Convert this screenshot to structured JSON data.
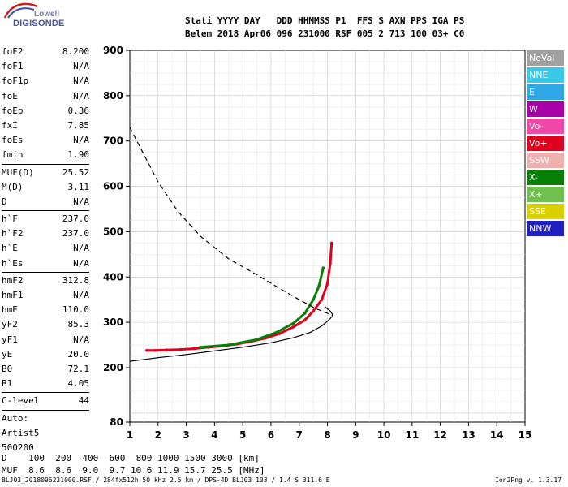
{
  "logo": {
    "line1": "Lowell",
    "line2": "DIGISONDE"
  },
  "header": {
    "line1": "Stati YYYY DAY   DDD HHMMSS P1  FFS S AXN PPS IGA PS",
    "line2": "Belem 2018 Apr06 096 231000 RSF 005 2 713 100 03+ C0"
  },
  "params": [
    {
      "key": "foF2",
      "value": "8.200"
    },
    {
      "key": "foF1",
      "value": "N/A"
    },
    {
      "key": "foF1p",
      "value": "N/A"
    },
    {
      "key": "foE",
      "value": "N/A"
    },
    {
      "key": "foEp",
      "value": "0.36"
    },
    {
      "key": "fxI",
      "value": "7.85"
    },
    {
      "key": "foEs",
      "value": "N/A"
    },
    {
      "key": "fmin",
      "value": "1.90"
    },
    {
      "key": "MUF(D)",
      "value": "25.52",
      "sep": true
    },
    {
      "key": "M(D)",
      "value": "3.11"
    },
    {
      "key": "D",
      "value": "N/A"
    },
    {
      "key": "h`F",
      "value": "237.0",
      "sep": true
    },
    {
      "key": "h`F2",
      "value": "237.0"
    },
    {
      "key": "h`E",
      "value": "N/A"
    },
    {
      "key": "h`Es",
      "value": "N/A"
    },
    {
      "key": "hmF2",
      "value": "312.8",
      "sep": true
    },
    {
      "key": "hmF1",
      "value": "N/A"
    },
    {
      "key": "hmE",
      "value": "110.0"
    },
    {
      "key": "yF2",
      "value": "85.3"
    },
    {
      "key": "yF1",
      "value": "N/A"
    },
    {
      "key": "yE",
      "value": "20.0"
    },
    {
      "key": "B0",
      "value": "72.1"
    },
    {
      "key": "B1",
      "value": "4.05"
    },
    {
      "key": "C-level",
      "value": "44",
      "sep": true
    }
  ],
  "auto_lines": [
    "Auto:",
    "Artist5",
    "500200"
  ],
  "legend": [
    {
      "label": "NoVal",
      "color": "#a0a0a0"
    },
    {
      "label": "NNE",
      "color": "#38c8e8"
    },
    {
      "label": "E",
      "color": "#30a8e8"
    },
    {
      "label": "W",
      "color": "#a800a8"
    },
    {
      "label": "Vo-",
      "color": "#f048a8"
    },
    {
      "label": "Vo+",
      "color": "#e00020"
    },
    {
      "label": "SSW",
      "color": "#f0b0b0"
    },
    {
      "label": "X-",
      "color": "#088008"
    },
    {
      "label": "X+",
      "color": "#70c050"
    },
    {
      "label": "SSE",
      "color": "#d8d000"
    },
    {
      "label": "NNW",
      "color": "#2020c0"
    }
  ],
  "dmuf": {
    "line1": "D    100  200  400  600  800 1000 1500 3000 [km]",
    "line2": "MUF  8.6  8.6  9.0  9.7 10.6 11.9 15.7 25.5 [MHz]"
  },
  "footer": {
    "left": "BLJ03_2018096231000.RSF / 284fx512h 50 kHz 2.5 km / DPS-4D BLJ03 103 / 1.4 S 311.6 E",
    "right": "Ion2Png v. 1.3.17"
  },
  "chart_data": {
    "type": "scatter",
    "xlim": [
      1,
      15
    ],
    "ylim": [
      80,
      900
    ],
    "x_ticks": [
      1,
      2,
      3,
      4,
      5,
      6,
      7,
      8,
      9,
      10,
      11,
      12,
      13,
      14,
      15
    ],
    "y_ticks": [
      80,
      200,
      300,
      400,
      500,
      600,
      700,
      800,
      900
    ],
    "xlabel": "",
    "ylabel": "",
    "grid": true,
    "legend_position": "right",
    "series": [
      {
        "name": "O-trace (echo)",
        "color": "#e00020",
        "x": [
          1.6,
          1.9,
          2.3,
          2.8,
          3.3,
          3.8,
          4.3,
          4.8,
          5.3,
          5.8,
          6.3,
          6.8,
          7.2,
          7.5,
          7.8,
          8.0,
          8.1,
          8.15
        ],
        "y": [
          238,
          238,
          239,
          240,
          242,
          245,
          248,
          252,
          258,
          265,
          275,
          290,
          305,
          325,
          350,
          385,
          430,
          475
        ]
      },
      {
        "name": "X-trace (echo)",
        "color": "#088008",
        "x": [
          3.5,
          4.5,
          5.5,
          6.2,
          6.8,
          7.2,
          7.5,
          7.7,
          7.85
        ],
        "y": [
          245,
          250,
          262,
          278,
          298,
          320,
          350,
          380,
          420
        ]
      },
      {
        "name": "Profile",
        "color": "#000000",
        "x": [
          1.0,
          2.0,
          3.0,
          4.0,
          5.0,
          6.0,
          6.8,
          7.4,
          7.8,
          8.05,
          8.2,
          8.1,
          7.9
        ],
        "y": [
          214,
          222,
          229,
          237,
          245,
          255,
          266,
          278,
          292,
          305,
          315,
          325,
          335
        ]
      },
      {
        "name": "MUF(D) curve",
        "color": "#000000",
        "dashed": true,
        "x": [
          1.0,
          1.5,
          2.0,
          2.7,
          3.5,
          4.5,
          5.5,
          6.3,
          7.0,
          7.6,
          8.0,
          8.2
        ],
        "y": [
          730,
          670,
          610,
          545,
          490,
          440,
          405,
          375,
          350,
          330,
          320,
          315
        ]
      }
    ]
  }
}
